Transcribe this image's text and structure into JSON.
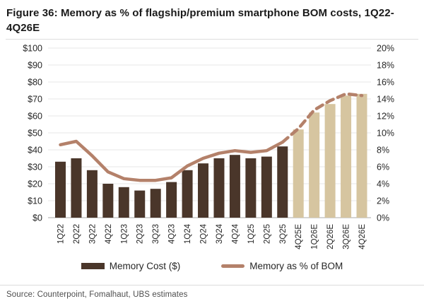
{
  "figure": {
    "title": "Figure 36: Memory as % of flagship/premium smartphone BOM costs, 1Q22-4Q26E",
    "source": "Source: Counterpoint, Fomalhaut, UBS estimates"
  },
  "legend": {
    "bar_label": "Memory Cost ($)",
    "line_label": "Memory as % of BOM"
  },
  "colors": {
    "bar_actual": "#4a362a",
    "bar_estimate": "#d6c5a0",
    "line": "#b4816a",
    "gridline": "#e7e7e7",
    "axis_line": "#a9a9a9",
    "tick_text": "#262626",
    "legend_text": "#262626"
  },
  "chart_data": {
    "type": "bar",
    "title": "Figure 36: Memory as % of flagship/premium smartphone BOM costs, 1Q22-4Q26E",
    "categories": [
      "1Q22",
      "2Q22",
      "3Q22",
      "4Q22",
      "1Q23",
      "2Q23",
      "3Q23",
      "4Q23",
      "1Q24",
      "2Q24",
      "3Q24",
      "4Q24",
      "1Q25",
      "2Q25",
      "3Q25",
      "4Q25E",
      "1Q26E",
      "2Q26E",
      "3Q26E",
      "4Q26E"
    ],
    "series": [
      {
        "name": "Memory Cost ($)",
        "type": "bar",
        "axis": "left",
        "values": [
          33,
          35,
          28,
          20,
          18,
          16,
          17,
          21,
          28,
          32,
          35,
          37,
          35,
          36,
          42,
          52,
          62,
          67,
          72,
          73
        ],
        "estimate_from_index": 15
      },
      {
        "name": "Memory as % of BOM",
        "type": "line",
        "axis": "right",
        "values": [
          8.6,
          9.0,
          7.3,
          5.4,
          4.6,
          4.4,
          4.4,
          4.7,
          6.1,
          7.0,
          7.6,
          7.9,
          7.7,
          7.9,
          8.9,
          10.5,
          12.7,
          13.8,
          14.6,
          14.4
        ],
        "dashed_from_index": 14
      }
    ],
    "left_axis": {
      "min": 0,
      "max": 100,
      "step": 10,
      "tick_labels": [
        "$0",
        "$10",
        "$20",
        "$30",
        "$40",
        "$50",
        "$60",
        "$70",
        "$80",
        "$90",
        "$100"
      ]
    },
    "right_axis": {
      "min": 0,
      "max": 20,
      "step": 2,
      "tick_labels": [
        "0%",
        "2%",
        "4%",
        "6%",
        "8%",
        "10%",
        "12%",
        "14%",
        "16%",
        "18%",
        "20%"
      ]
    },
    "grid": true,
    "legend_position": "bottom"
  }
}
